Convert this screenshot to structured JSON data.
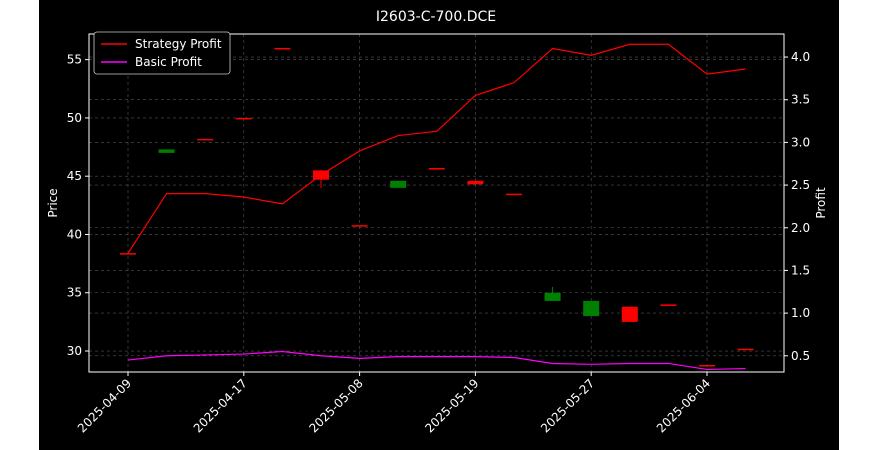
{
  "chart_data": {
    "type": "candlestick+line",
    "title": "I2603-C-700.DCE",
    "ylabel_left": "Price",
    "ylabel_right": "Profit",
    "ylim_left": [
      28.2,
      57.2
    ],
    "ylim_right": [
      0.31,
      4.27
    ],
    "left_ticks": [
      30,
      35,
      40,
      45,
      50,
      55
    ],
    "right_ticks": [
      0.5,
      1.0,
      1.5,
      2.0,
      2.5,
      3.0,
      3.5,
      4.0
    ],
    "x_tick_labels": [
      "2025-04-09",
      "2025-04-17",
      "2025-05-08",
      "2025-05-19",
      "2025-05-27",
      "2025-06-04"
    ],
    "x_tick_index": [
      0,
      3,
      6,
      9,
      12,
      15
    ],
    "grid": true,
    "legend_position": "top-left",
    "colors": {
      "up": "#008000",
      "down": "#ff0000",
      "strategy": "#ff0000",
      "basic": "#ff00ff",
      "grid": "#555555"
    },
    "candles": [
      {
        "open": 38.4,
        "high": 38.4,
        "low": 38.4,
        "close": 38.4
      },
      {
        "open": 47.0,
        "high": 47.3,
        "low": 47.0,
        "close": 47.3
      },
      {
        "open": 48.2,
        "high": 48.2,
        "low": 48.2,
        "close": 48.2
      },
      {
        "open": 50.0,
        "high": 50.0,
        "low": 50.0,
        "close": 50.0
      },
      {
        "open": 56.0,
        "high": 56.0,
        "low": 56.0,
        "close": 56.0
      },
      {
        "open": 45.5,
        "high": 45.5,
        "low": 44.0,
        "close": 44.7
      },
      {
        "open": 40.8,
        "high": 40.8,
        "low": 40.8,
        "close": 40.8
      },
      {
        "open": 44.0,
        "high": 44.6,
        "low": 44.0,
        "close": 44.6
      },
      {
        "open": 45.7,
        "high": 45.7,
        "low": 45.7,
        "close": 45.7
      },
      {
        "open": 44.6,
        "high": 44.6,
        "low": 44.3,
        "close": 44.3
      },
      {
        "open": 43.5,
        "high": 43.5,
        "low": 43.5,
        "close": 43.5
      },
      {
        "open": 34.3,
        "high": 35.5,
        "low": 34.3,
        "close": 35.0
      },
      {
        "open": 33.0,
        "high": 34.3,
        "low": 33.0,
        "close": 34.3
      },
      {
        "open": 33.8,
        "high": 33.8,
        "low": 32.5,
        "close": 32.5
      },
      {
        "open": 34.0,
        "high": 34.0,
        "low": 34.0,
        "close": 34.0
      },
      {
        "open": 28.8,
        "high": 28.8,
        "low": 28.8,
        "close": 28.8
      },
      {
        "open": 30.2,
        "high": 30.2,
        "low": 30.2,
        "close": 30.2
      }
    ],
    "series": [
      {
        "name": "Strategy Profit",
        "values": [
          1.7,
          2.4,
          2.4,
          2.36,
          2.28,
          2.62,
          2.9,
          3.08,
          3.13,
          3.55,
          3.7,
          4.1,
          4.02,
          4.15,
          4.15,
          3.8,
          3.86
        ]
      },
      {
        "name": "Basic Profit",
        "values": [
          0.45,
          0.5,
          0.51,
          0.52,
          0.55,
          0.5,
          0.47,
          0.49,
          0.49,
          0.49,
          0.48,
          0.41,
          0.4,
          0.41,
          0.41,
          0.34,
          0.35
        ]
      }
    ]
  }
}
